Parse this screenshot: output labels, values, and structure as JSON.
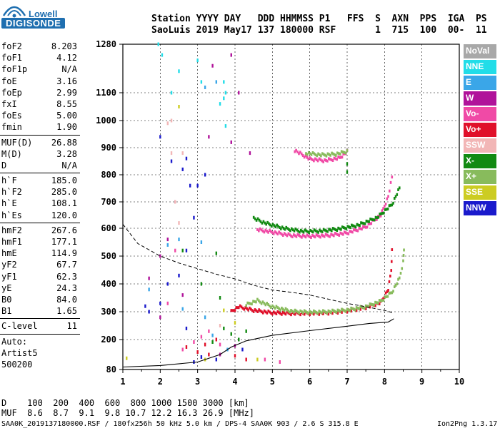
{
  "logo": {
    "line1": "Lowell",
    "line2": "DIGISONDE"
  },
  "header": {
    "line1": "Station YYYY DAY   DDD HHMMSS P1   FFS  S  AXN  PPS  IGA  PS",
    "line2": "SaoLuis 2019 May17 137 180000 RSF       1  715  100  00-  11"
  },
  "params": [
    [
      {
        "k": "foF2",
        "v": "8.203"
      },
      {
        "k": "foF1",
        "v": "4.12"
      },
      {
        "k": "foF1p",
        "v": "N/A"
      },
      {
        "k": "foE",
        "v": "3.16"
      },
      {
        "k": "foEp",
        "v": "2.99"
      },
      {
        "k": "fxI",
        "v": "8.55"
      },
      {
        "k": "foEs",
        "v": "5.00"
      },
      {
        "k": "fmin",
        "v": "1.90"
      }
    ],
    [
      {
        "k": "MUF(D)",
        "v": "26.88"
      },
      {
        "k": "M(D)",
        "v": "3.28"
      },
      {
        "k": "D",
        "v": "N/A"
      }
    ],
    [
      {
        "k": "h`F",
        "v": "185.0"
      },
      {
        "k": "h`F2",
        "v": "285.0"
      },
      {
        "k": "h`E",
        "v": "108.1"
      },
      {
        "k": "h`Es",
        "v": "120.0"
      }
    ],
    [
      {
        "k": "hmF2",
        "v": "267.6"
      },
      {
        "k": "hmF1",
        "v": "177.1"
      },
      {
        "k": "hmE",
        "v": "114.9"
      },
      {
        "k": "yF2",
        "v": "67.7"
      },
      {
        "k": "yF1",
        "v": "62.3"
      },
      {
        "k": "yE",
        "v": "24.3"
      },
      {
        "k": "B0",
        "v": "84.0"
      },
      {
        "k": "B1",
        "v": "1.65"
      }
    ],
    [
      {
        "k": "C-level",
        "v": "11"
      }
    ]
  ],
  "autoscaling": {
    "line1": "Auto:",
    "line2": "Artist5",
    "line3": "500200"
  },
  "legend": [
    {
      "label": "NoVal",
      "color": "#a8a8a8"
    },
    {
      "label": "NNE",
      "color": "#22dde8"
    },
    {
      "label": "E",
      "color": "#3aa6e8"
    },
    {
      "label": "W",
      "color": "#b0139a"
    },
    {
      "label": "Vo-",
      "color": "#f04aa6"
    },
    {
      "label": "Vo+",
      "color": "#e0102a"
    },
    {
      "label": "SSW",
      "color": "#f2b6b6"
    },
    {
      "label": "X-",
      "color": "#128a12"
    },
    {
      "label": "X+",
      "color": "#88bb5c"
    },
    {
      "label": "SSE",
      "color": "#cccc22"
    },
    {
      "label": "NNW",
      "color": "#1a1acc"
    }
  ],
  "footer": {
    "line1": "D    100  200  400  600  800 1000 1500 3000 [km]",
    "line2": "MUF  8.6  8.7  9.1  9.8 10.7 12.2 16.3 26.9 [MHz]",
    "line3": "SAA0K_2019137180000.RSF / 180fx256h 50 kHz 5.0 km / DPS-4 SAA0K 903 / 2.6 S 315.8 E",
    "version": "Ion2Png 1.3.17"
  },
  "chart_data": {
    "type": "scatter",
    "x_ticks": [
      "1",
      "2",
      "3",
      "4",
      "5",
      "6",
      "7",
      "8",
      "9",
      "10"
    ],
    "y_ticks": [
      "80",
      "200",
      "300",
      "400",
      "500",
      "600",
      "700",
      "800",
      "900",
      "1000",
      "1100",
      "1280"
    ],
    "xlim": [
      1,
      10
    ],
    "ylim": [
      80,
      1280
    ],
    "xlabel": "",
    "ylabel": "",
    "grid": "dashed vertical and horizontal",
    "traces": [
      {
        "name": "O-trace F2",
        "color": "#e0102a",
        "points": [
          [
            3.9,
            300
          ],
          [
            4.1,
            318
          ],
          [
            4.5,
            305
          ],
          [
            5.0,
            296
          ],
          [
            5.5,
            294
          ],
          [
            6.0,
            294
          ],
          [
            6.5,
            296
          ],
          [
            7.0,
            303
          ],
          [
            7.5,
            315
          ],
          [
            7.9,
            333
          ],
          [
            8.1,
            380
          ],
          [
            8.18,
            450
          ],
          [
            8.2,
            520
          ]
        ]
      },
      {
        "name": "X-trace F2",
        "color": "#88bb5c",
        "points": [
          [
            4.3,
            325
          ],
          [
            4.6,
            340
          ],
          [
            5.0,
            318
          ],
          [
            5.5,
            302
          ],
          [
            6.0,
            298
          ],
          [
            6.5,
            300
          ],
          [
            7.0,
            306
          ],
          [
            7.5,
            318
          ],
          [
            7.9,
            338
          ],
          [
            8.2,
            370
          ],
          [
            8.4,
            420
          ],
          [
            8.5,
            480
          ],
          [
            8.52,
            525
          ]
        ]
      },
      {
        "name": "O-trace multiple",
        "color": "#f04aa6",
        "points": [
          [
            4.6,
            595
          ],
          [
            5.0,
            586
          ],
          [
            5.5,
            574
          ],
          [
            6.0,
            571
          ],
          [
            6.5,
            574
          ],
          [
            7.0,
            583
          ],
          [
            7.5,
            605
          ],
          [
            7.9,
            650
          ],
          [
            8.1,
            720
          ],
          [
            8.2,
            790
          ]
        ]
      },
      {
        "name": "X-trace multiple",
        "color": "#128a12",
        "points": [
          [
            4.5,
            638
          ],
          [
            4.8,
            620
          ],
          [
            5.3,
            600
          ],
          [
            5.8,
            589
          ],
          [
            6.3,
            590
          ],
          [
            6.8,
            598
          ],
          [
            7.3,
            612
          ],
          [
            7.8,
            640
          ],
          [
            8.2,
            690
          ],
          [
            8.4,
            750
          ]
        ]
      },
      {
        "name": "third multiple",
        "color": "#f04aa6",
        "points": [
          [
            5.6,
            890
          ],
          [
            6.0,
            858
          ],
          [
            6.4,
            852
          ],
          [
            6.8,
            862
          ],
          [
            7.0,
            885
          ]
        ]
      },
      {
        "name": "third multiple X",
        "color": "#88bb5c",
        "points": [
          [
            5.9,
            880
          ],
          [
            6.3,
            873
          ],
          [
            6.7,
            876
          ],
          [
            7.0,
            886
          ]
        ]
      }
    ],
    "profile_solid": [
      [
        1.0,
        90
      ],
      [
        2.0,
        96
      ],
      [
        3.0,
        110
      ],
      [
        3.6,
        140
      ],
      [
        3.9,
        170
      ],
      [
        4.3,
        195
      ],
      [
        5.0,
        215
      ],
      [
        6.0,
        232
      ],
      [
        7.0,
        248
      ],
      [
        7.6,
        258
      ],
      [
        8.1,
        263
      ],
      [
        8.25,
        275
      ]
    ],
    "profile_dashed": [
      [
        1.0,
        615
      ],
      [
        1.4,
        545
      ],
      [
        2.0,
        500
      ],
      [
        2.5,
        475
      ],
      [
        3.0,
        455
      ],
      [
        3.5,
        435
      ],
      [
        4.0,
        418
      ],
      [
        4.5,
        395
      ],
      [
        5.0,
        378
      ],
      [
        5.5,
        370
      ],
      [
        6.0,
        360
      ],
      [
        6.5,
        345
      ],
      [
        7.0,
        330
      ],
      [
        7.5,
        318
      ],
      [
        8.0,
        305
      ],
      [
        8.25,
        295
      ]
    ],
    "noise": [
      {
        "color": "#1a1acc",
        "points": [
          [
            2.0,
            940
          ],
          [
            2.3,
            850
          ],
          [
            2.6,
            820
          ],
          [
            2.7,
            860
          ],
          [
            2.8,
            760
          ],
          [
            3.0,
            760
          ],
          [
            3.2,
            800
          ],
          [
            2.9,
            640
          ],
          [
            2.7,
            520
          ],
          [
            2.5,
            430
          ],
          [
            2.2,
            400
          ],
          [
            2.0,
            330
          ],
          [
            1.6,
            320
          ],
          [
            1.7,
            300
          ],
          [
            2.7,
            240
          ],
          [
            3.1,
            130
          ],
          [
            2.9,
            110
          ],
          [
            3.5,
            120
          ],
          [
            4.2,
            160
          ]
        ]
      },
      {
        "color": "#b0139a",
        "points": [
          [
            3.4,
            1200
          ],
          [
            3.9,
            1240
          ],
          [
            3.3,
            940
          ],
          [
            2.4,
            700
          ],
          [
            2.2,
            560
          ],
          [
            2.0,
            500
          ],
          [
            1.7,
            420
          ],
          [
            3.9,
            920
          ],
          [
            4.1,
            1100
          ],
          [
            4.4,
            880
          ],
          [
            2.6,
            360
          ],
          [
            2.0,
            280
          ],
          [
            3.6,
            140
          ],
          [
            4.0,
            175
          ]
        ]
      },
      {
        "color": "#22dde8",
        "points": [
          [
            1.95,
            1280
          ],
          [
            2.05,
            1240
          ],
          [
            3.0,
            1220
          ],
          [
            3.1,
            1140
          ],
          [
            3.6,
            1060
          ],
          [
            3.7,
            1080
          ],
          [
            3.7,
            1140
          ],
          [
            3.75,
            1100
          ],
          [
            3.75,
            980
          ],
          [
            2.3,
            1100
          ],
          [
            2.5,
            1180
          ]
        ]
      },
      {
        "color": "#3aa6e8",
        "points": [
          [
            3.2,
            1120
          ],
          [
            3.5,
            1140
          ],
          [
            1.7,
            380
          ],
          [
            2.2,
            540
          ],
          [
            2.5,
            560
          ],
          [
            3.1,
            550
          ],
          [
            2.6,
            310
          ],
          [
            3.2,
            280
          ],
          [
            3.4,
            215
          ],
          [
            3.8,
            160
          ]
        ]
      },
      {
        "color": "#f2b6b6",
        "points": [
          [
            2.2,
            990
          ],
          [
            2.3,
            1000
          ],
          [
            2.3,
            880
          ],
          [
            2.4,
            700
          ],
          [
            2.5,
            620
          ],
          [
            2.6,
            880
          ],
          [
            3.6,
            250
          ]
        ]
      },
      {
        "color": "#128a12",
        "points": [
          [
            2.6,
            520
          ],
          [
            3.5,
            510
          ],
          [
            3.1,
            400
          ],
          [
            3.6,
            350
          ],
          [
            3.7,
            240
          ],
          [
            4.1,
            200
          ],
          [
            4.3,
            230
          ],
          [
            3.4,
            190
          ],
          [
            3.9,
            220
          ],
          [
            7.0,
            810
          ],
          [
            7.0,
            840
          ]
        ]
      },
      {
        "color": "#cccc22",
        "points": [
          [
            1.1,
            125
          ],
          [
            2.5,
            1050
          ],
          [
            3.7,
            305
          ],
          [
            4.0,
            260
          ],
          [
            3.2,
            120
          ],
          [
            4.6,
            120
          ]
        ]
      },
      {
        "color": "#e0102a",
        "points": [
          [
            2.7,
            170
          ],
          [
            3.0,
            150
          ],
          [
            3.2,
            180
          ],
          [
            3.5,
            200
          ],
          [
            4.0,
            135
          ],
          [
            4.3,
            120
          ],
          [
            3.3,
            140
          ]
        ]
      },
      {
        "color": "#f04aa6",
        "points": [
          [
            2.6,
            160
          ],
          [
            2.9,
            190
          ],
          [
            3.1,
            210
          ],
          [
            3.3,
            230
          ],
          [
            3.6,
            180
          ],
          [
            2.2,
            330
          ],
          [
            2.4,
            520
          ],
          [
            4.8,
            120
          ],
          [
            5.2,
            110
          ]
        ]
      }
    ]
  }
}
